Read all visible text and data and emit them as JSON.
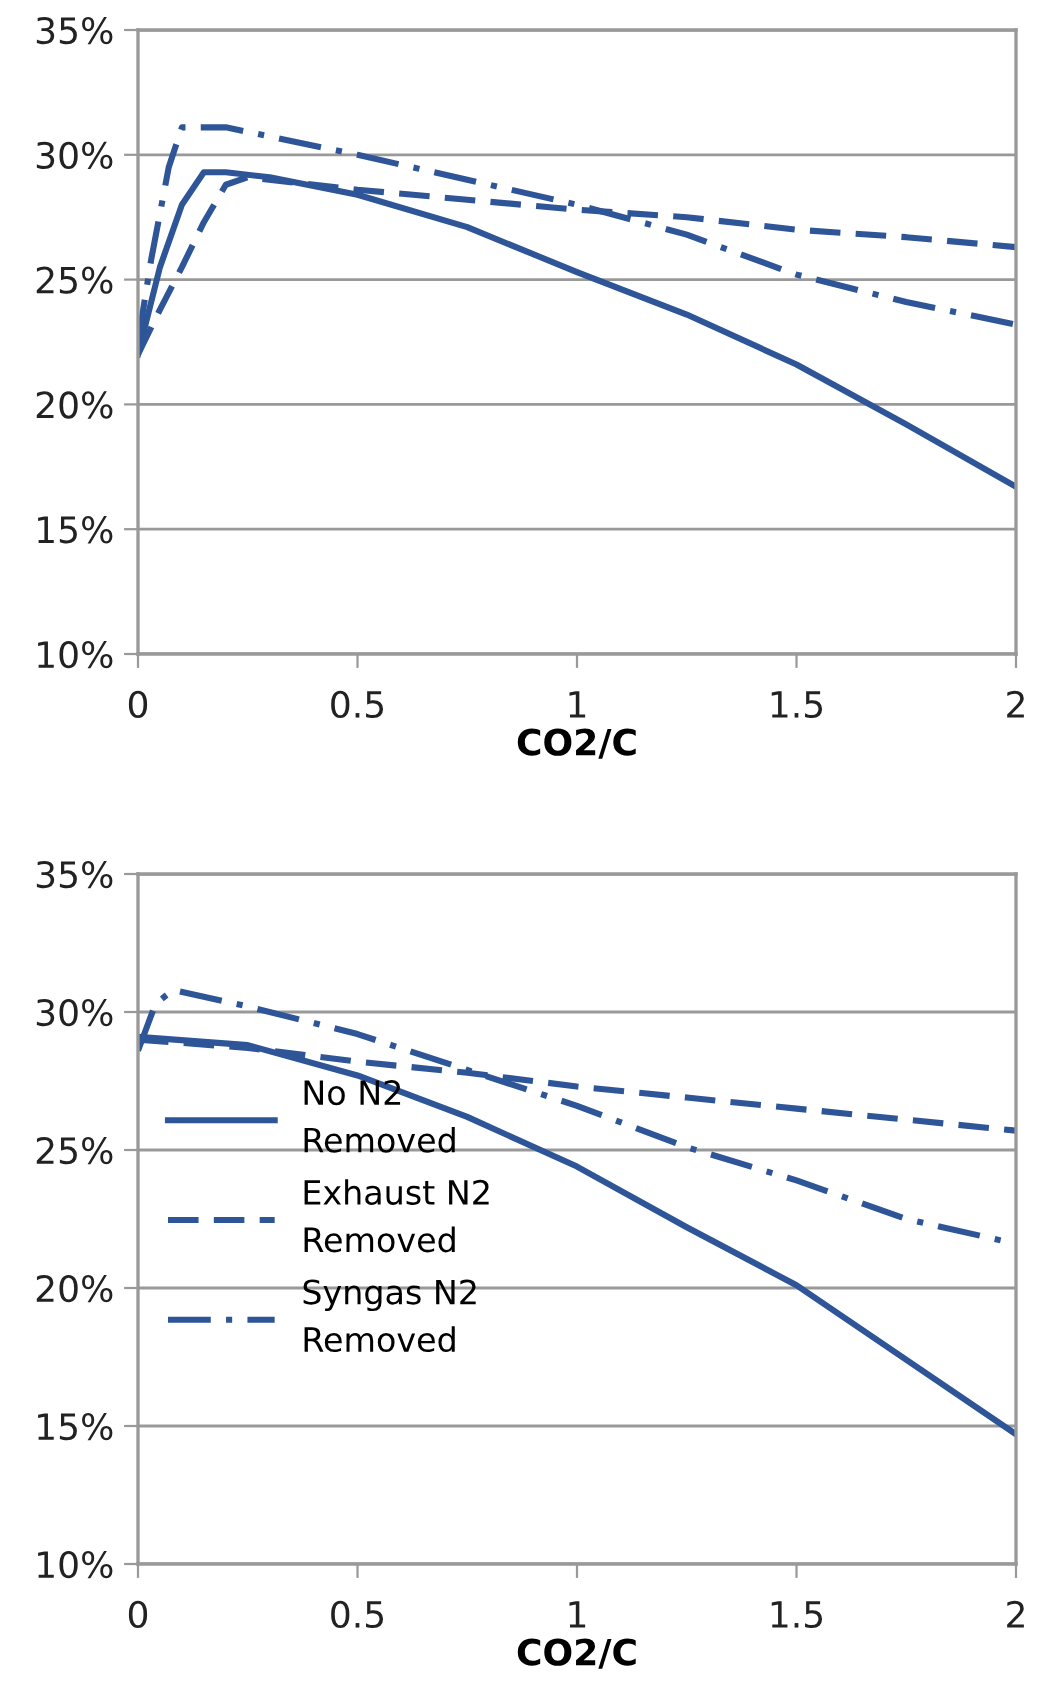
{
  "chart_data": [
    {
      "type": "line",
      "xlabel": "CO2/C",
      "xlim": [
        0,
        2
      ],
      "xticks": [
        0,
        0.5,
        1,
        1.5,
        2
      ],
      "ylim": [
        10,
        35
      ],
      "yticks": [
        {
          "value": 10,
          "label": "10%"
        },
        {
          "value": 15,
          "label": "15%"
        },
        {
          "value": 20,
          "label": "20%"
        },
        {
          "value": 25,
          "label": "25%"
        },
        {
          "value": 30,
          "label": "30%"
        },
        {
          "value": 35,
          "label": "35%"
        }
      ],
      "grid": "y",
      "legend": false,
      "series": [
        {
          "color": "#2e5597",
          "line_style": "solid",
          "x": [
            0,
            0.05,
            0.1,
            0.15,
            0.2,
            0.3,
            0.5,
            0.75,
            1.0,
            1.25,
            1.5,
            1.75,
            2.0
          ],
          "values": [
            22.0,
            25.5,
            28.0,
            29.3,
            29.3,
            29.1,
            28.4,
            27.1,
            25.3,
            23.6,
            21.6,
            19.2,
            16.7
          ]
        },
        {
          "color": "#2e5597",
          "line_style": "dashed",
          "x": [
            0,
            0.05,
            0.1,
            0.15,
            0.2,
            0.25,
            0.5,
            0.75,
            1.0,
            1.25,
            1.5,
            1.75,
            2.0
          ],
          "values": [
            22.0,
            23.8,
            25.5,
            27.3,
            28.8,
            29.1,
            28.6,
            28.2,
            27.8,
            27.5,
            27.0,
            26.7,
            26.3
          ]
        },
        {
          "color": "#2e5597",
          "line_style": "dashdot",
          "x": [
            0,
            0.03,
            0.07,
            0.1,
            0.2,
            0.5,
            0.75,
            1.0,
            1.25,
            1.5,
            1.75,
            2.0
          ],
          "values": [
            22.5,
            25.8,
            29.5,
            31.1,
            31.1,
            30.0,
            29.0,
            28.0,
            26.8,
            25.2,
            24.1,
            23.2
          ]
        }
      ]
    },
    {
      "type": "line",
      "xlabel": "CO2/C",
      "xlim": [
        0,
        2
      ],
      "xticks": [
        0,
        0.5,
        1,
        1.5,
        2
      ],
      "ylim": [
        10,
        35
      ],
      "yticks": [
        {
          "value": 10,
          "label": "10%"
        },
        {
          "value": 15,
          "label": "15%"
        },
        {
          "value": 20,
          "label": "20%"
        },
        {
          "value": 25,
          "label": "25%"
        },
        {
          "value": 30,
          "label": "30%"
        },
        {
          "value": 35,
          "label": "35%"
        }
      ],
      "grid": "y",
      "legend": "left",
      "series": [
        {
          "name": "No N2\nRemoved",
          "color": "#2e5597",
          "line_style": "solid",
          "x": [
            0,
            0.25,
            0.5,
            0.75,
            1.0,
            1.25,
            1.5,
            1.75,
            2.0
          ],
          "values": [
            29.1,
            28.8,
            27.7,
            26.2,
            24.4,
            22.2,
            20.1,
            17.4,
            14.7
          ]
        },
        {
          "name": "Exhaust N2\nRemoved",
          "color": "#2e5597",
          "line_style": "dashed",
          "x": [
            0,
            0.25,
            0.5,
            0.75,
            1.0,
            1.25,
            1.5,
            1.75,
            2.0
          ],
          "values": [
            29.0,
            28.7,
            28.2,
            27.8,
            27.3,
            26.9,
            26.5,
            26.1,
            25.7
          ]
        },
        {
          "name": "Syngas N2\nRemoved",
          "color": "#2e5597",
          "line_style": "dashdot",
          "x": [
            0,
            0.04,
            0.08,
            0.25,
            0.5,
            0.75,
            1.0,
            1.25,
            1.5,
            1.75,
            2.0
          ],
          "values": [
            28.6,
            30.3,
            30.8,
            30.2,
            29.2,
            27.9,
            26.6,
            25.1,
            23.9,
            22.5,
            21.6
          ]
        }
      ]
    }
  ]
}
